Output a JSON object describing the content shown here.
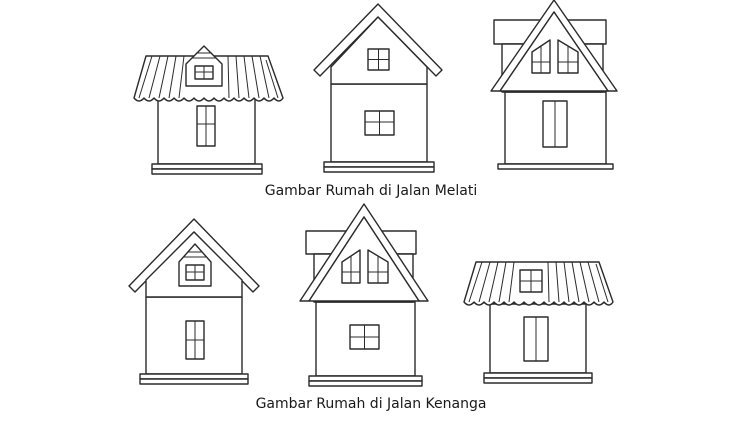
{
  "captions": {
    "row1": "Gambar Rumah di Jalan Melati",
    "row2": "Gambar Rumah di Jalan Kenanga"
  },
  "houses": {
    "row1": [
      "hip-roof-dormer",
      "gable-roof",
      "a-frame-roof"
    ],
    "row2": [
      "gable-roof-dormer",
      "a-frame-roof",
      "hip-roof"
    ]
  },
  "colors": {
    "line": "#2b2b2b",
    "fill": "#ffffff",
    "text": "#1a1a1a"
  }
}
